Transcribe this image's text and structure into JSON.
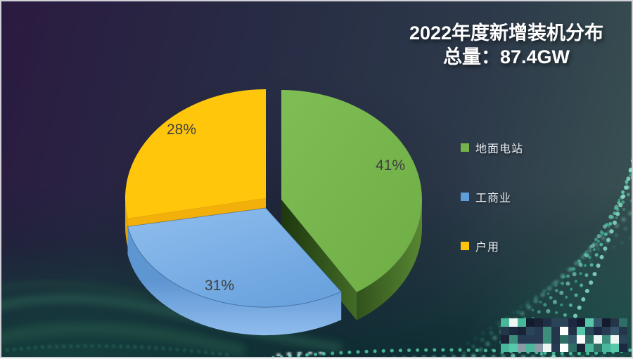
{
  "chart_data": {
    "type": "pie",
    "style": "3d-exploded-pie",
    "title": "2022年度新增装机分布",
    "subtitle": "总量：87.4GW",
    "total_value": 87.4,
    "unit": "GW",
    "legend_position": "right",
    "slices": [
      {
        "label": "地面电站",
        "value": 41,
        "pct_label": "41%",
        "color": "#76B44B"
      },
      {
        "label": "工商业",
        "value": 31,
        "pct_label": "31%",
        "color": "#5F9DDB"
      },
      {
        "label": "户用",
        "value": 28,
        "pct_label": "28%",
        "color": "#FFC409"
      }
    ]
  },
  "watermark": {
    "type": "pixelated-mosaic",
    "palette": [
      "#24364a",
      "#1c2940",
      "#35566a",
      "#57c8a9",
      "#eef6f4",
      "#2e6e64",
      "#8a9aa6",
      "#223047",
      "#49b79a",
      "#ffffff",
      "#1a2336",
      "#3d8f7c",
      "#263b52",
      "#2a4458",
      "#121c2e"
    ]
  }
}
